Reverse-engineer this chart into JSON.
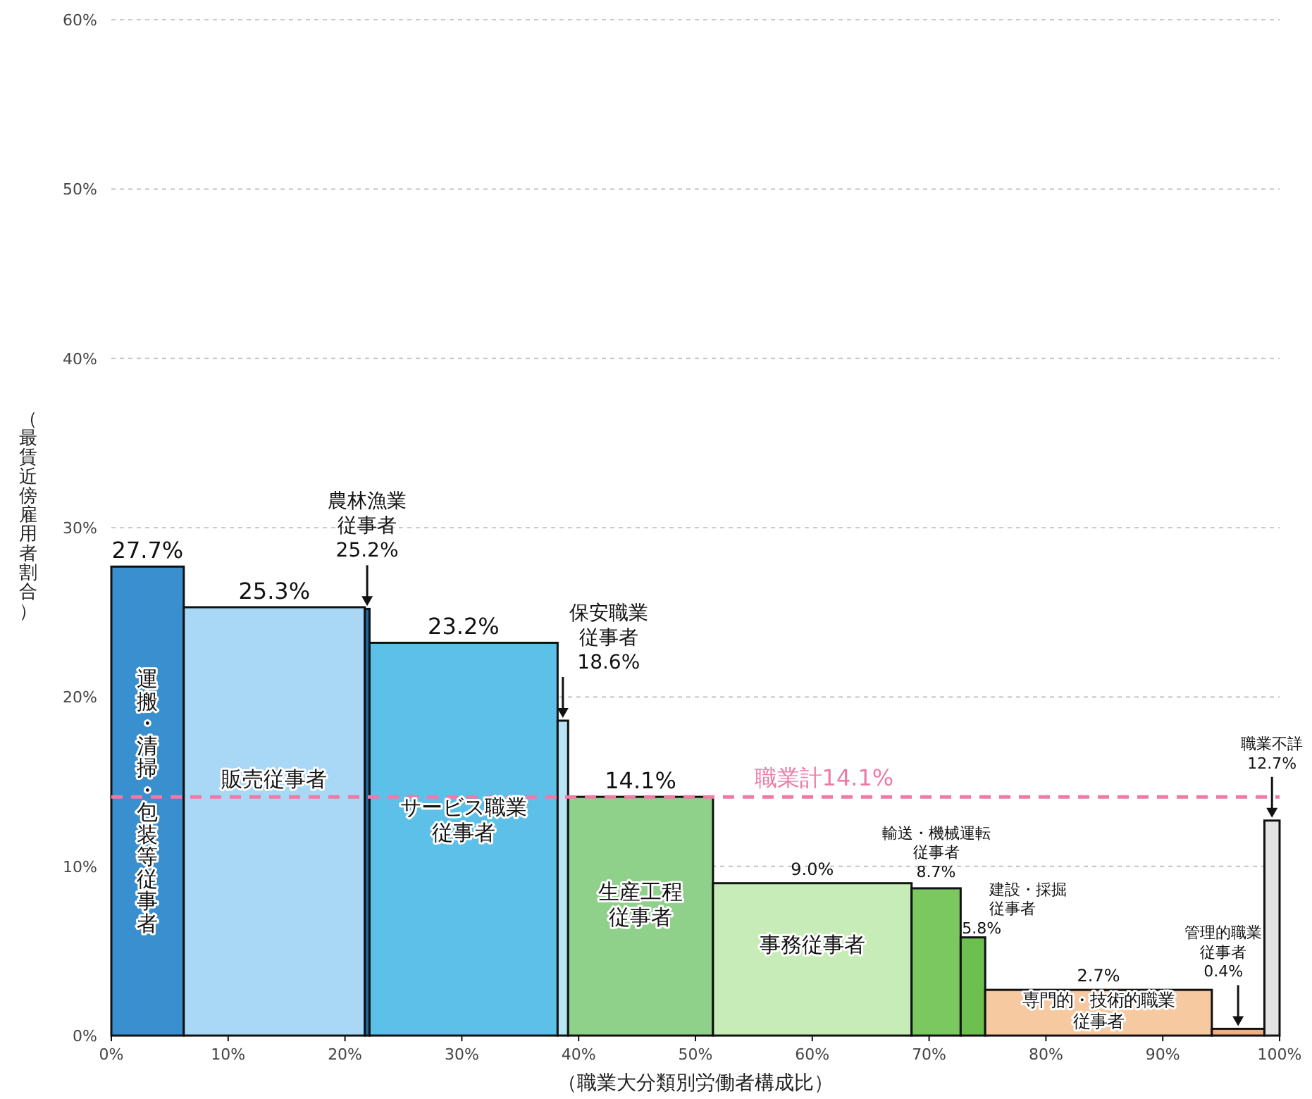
{
  "chart_data": {
    "type": "histogram",
    "xlabel": "（職業大分類別労働者構成比）",
    "ylabel": "（最賃近傍雇用者割合）",
    "bins": [
      0,
      6.2,
      21.7,
      22.1,
      38.2,
      39.1,
      51.5,
      68.5,
      72.7,
      74.8,
      94.2,
      98.7,
      100
    ],
    "values": [
      27.7,
      25.3,
      25.2,
      23.2,
      18.6,
      14.1,
      9.0,
      8.7,
      5.8,
      2.7,
      0.4,
      12.7
    ],
    "colors": [
      "#3a8fcf",
      "#a8d8f5",
      "#1f6aa5",
      "#5cc0e8",
      "#b8e4f4",
      "#8fd08a",
      "#c8ecb8",
      "#7cc860",
      "#6cc050",
      "#f7c9a0",
      "#f0b080",
      "#e4e4e4"
    ],
    "value_labels": [
      "27.7%",
      "25.3%",
      "25.2%",
      "23.2%",
      "18.6%",
      "14.1%",
      "9.0%",
      "8.7%",
      "5.8%",
      "2.7%",
      "0.4%",
      "12.7%"
    ],
    "xlim": [
      0,
      100
    ],
    "ylim": [
      0,
      60
    ],
    "xticks": [
      {
        "value": 0,
        "label": "0%"
      },
      {
        "value": 10,
        "label": "10%"
      },
      {
        "value": 20,
        "label": "20%"
      },
      {
        "value": 30,
        "label": "30%"
      },
      {
        "value": 40,
        "label": "40%"
      },
      {
        "value": 50,
        "label": "50%"
      },
      {
        "value": 60,
        "label": "60%"
      },
      {
        "value": 70,
        "label": "70%"
      },
      {
        "value": 80,
        "label": "80%"
      },
      {
        "value": 90,
        "label": "90%"
      },
      {
        "value": 100,
        "label": "100%"
      }
    ],
    "yticks": [
      {
        "value": 0,
        "label": "0%"
      },
      {
        "value": 10,
        "label": "10%"
      },
      {
        "value": 20,
        "label": "20%"
      },
      {
        "value": 30,
        "label": "30%"
      },
      {
        "value": 40,
        "label": "40%"
      },
      {
        "value": 50,
        "label": "50%"
      },
      {
        "value": 60,
        "label": "60%"
      }
    ],
    "grid": "y",
    "ref_lines": [
      {
        "axis": "y",
        "value": 14.1,
        "label": "職業計14.1%",
        "color": "#ee7aa6",
        "line_style": "dashed"
      }
    ],
    "annotations": [
      "運搬・清掃・包装等従事者",
      "販売従事者",
      "農林漁業従事者",
      "サービス職業従事者",
      "保安職業従事者",
      "生産工程従事者",
      "事務従事者",
      "輸送・機械運転従事者",
      "建設・採掘従事者",
      "専門的・技術的職業従事者",
      "管理的職業従事者",
      "職業不詳"
    ]
  }
}
